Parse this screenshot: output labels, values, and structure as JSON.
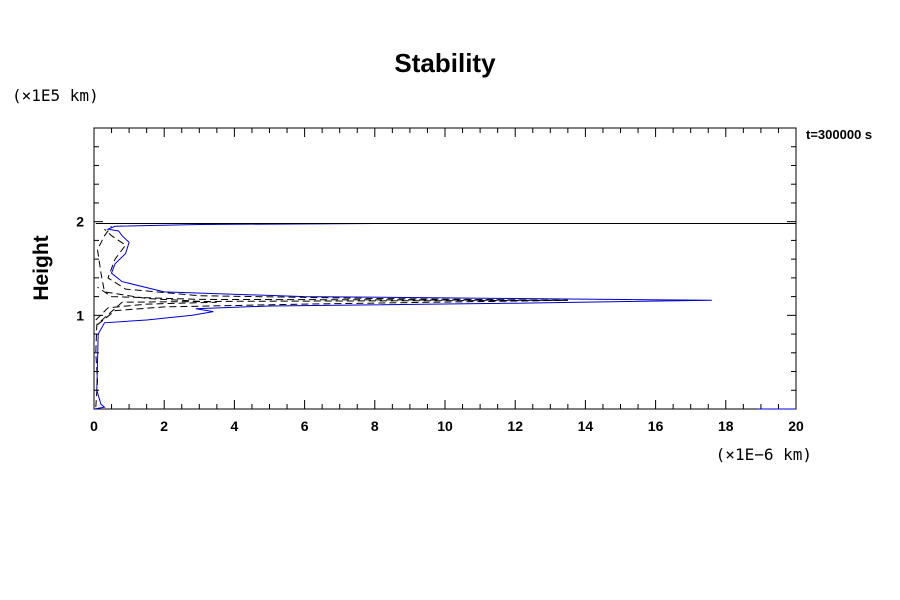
{
  "chart_data": {
    "type": "line",
    "title": "Stability",
    "ylabel": "Height",
    "xlabel": "",
    "x_unit": "(×1E−6 km)",
    "y_unit": "(×1E5 km)",
    "annotation": "t=300000 s",
    "xlim": [
      0,
      20
    ],
    "ylim": [
      0,
      3
    ],
    "x_ticks": [
      "0",
      "2",
      "4",
      "6",
      "8",
      "10",
      "12",
      "14",
      "16",
      "18",
      "20"
    ],
    "y_ticks": [
      "1",
      "2"
    ],
    "grid": false,
    "series": [
      {
        "color": "#0000cc",
        "dash": "solid",
        "points": [
          [
            0.02,
            0.0
          ],
          [
            0.3,
            0.02
          ],
          [
            0.2,
            0.05
          ],
          [
            0.08,
            0.2
          ],
          [
            0.1,
            0.5
          ],
          [
            0.12,
            0.8
          ],
          [
            0.3,
            0.92
          ],
          [
            1.5,
            0.95
          ],
          [
            2.8,
            1.0
          ],
          [
            3.4,
            1.04
          ],
          [
            2.9,
            1.07
          ],
          [
            5,
            1.1
          ],
          [
            12,
            1.13
          ],
          [
            17.6,
            1.16
          ],
          [
            12,
            1.18
          ],
          [
            6,
            1.2
          ],
          [
            2,
            1.25
          ],
          [
            0.8,
            1.36
          ],
          [
            0.5,
            1.45
          ],
          [
            0.6,
            1.55
          ],
          [
            0.9,
            1.66
          ],
          [
            1.0,
            1.78
          ],
          [
            0.8,
            1.85
          ],
          [
            0.7,
            1.9
          ],
          [
            0.4,
            1.92
          ],
          [
            0.6,
            1.95
          ],
          [
            3,
            1.97
          ],
          [
            8,
            1.98
          ],
          [
            0.1,
            1.98
          ]
        ]
      },
      {
        "color": "#000000",
        "dash": "solid",
        "points": [
          [
            0.05,
            1.98
          ],
          [
            20,
            1.98
          ]
        ]
      },
      {
        "color": "#000000",
        "dash": "dash",
        "points": [
          [
            0.1,
            0.9
          ],
          [
            0.6,
            1.05
          ],
          [
            2,
            1.09
          ],
          [
            6,
            1.12
          ],
          [
            13.5,
            1.16
          ],
          [
            8,
            1.18
          ],
          [
            3,
            1.21
          ],
          [
            0.9,
            1.28
          ],
          [
            0.4,
            1.4
          ],
          [
            0.6,
            1.6
          ],
          [
            0.9,
            1.75
          ],
          [
            0.5,
            1.85
          ],
          [
            0.3,
            1.92
          ]
        ]
      },
      {
        "color": "#000000",
        "dash": "dash",
        "points": [
          [
            0.05,
            0.95
          ],
          [
            0.4,
            1.08
          ],
          [
            1.5,
            1.12
          ],
          [
            3.5,
            1.14
          ],
          [
            1.5,
            1.18
          ],
          [
            0.3,
            1.25
          ],
          [
            0.2,
            1.45
          ],
          [
            0.1,
            1.7
          ],
          [
            0.3,
            1.85
          ],
          [
            0.5,
            1.95
          ]
        ]
      },
      {
        "color": "#000000",
        "dash": "dash",
        "points": [
          [
            0.05,
            0.02
          ],
          [
            0.1,
            0.3
          ],
          [
            0.05,
            0.6
          ],
          [
            0.08,
            0.9
          ],
          [
            0.8,
            1.14
          ],
          [
            4,
            1.15
          ],
          [
            13.5,
            1.16
          ],
          [
            3,
            1.17
          ],
          [
            0.5,
            1.2
          ],
          [
            0.1,
            1.3
          ]
        ]
      },
      {
        "color": "#0000cc",
        "dash": "solid",
        "points": [
          [
            18.9,
            0.0
          ],
          [
            20,
            0.0
          ]
        ]
      }
    ]
  }
}
